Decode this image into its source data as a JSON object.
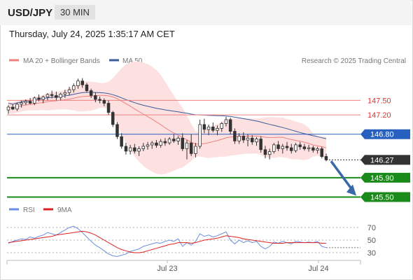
{
  "header": {
    "symbol": "USD/JPY",
    "timeframe": "30 MIN",
    "datetime": "Thursday, July 24, 2025 1:35:17 AM CET"
  },
  "colors": {
    "ma20": "#f08080",
    "ma50": "#3a5a9a",
    "band": "#fde0e0",
    "bull": "#ffffff",
    "bear": "#333333",
    "resistance": "#f08080",
    "pivot": "#2860c0",
    "support": "#1a8a1a",
    "arrow": "#3a68a8",
    "rsi": "#6b8fe0",
    "rsi_ma": "#dd2222"
  },
  "chart_data": [
    {
      "type": "candlestick",
      "legend": [
        "MA 20 + Bollinger Bands",
        "MA 50"
      ],
      "legend_placement": "top-left",
      "credit": "Research © 2025 Trading Central",
      "x_ticks": [
        "Jul 23",
        "Jul 24"
      ],
      "last_price": 146.27,
      "levels": [
        {
          "value": 147.5,
          "label": "147.50",
          "kind": "resistance"
        },
        {
          "value": 147.2,
          "label": "147.20",
          "kind": "resistance"
        },
        {
          "value": 146.8,
          "label": "146.80",
          "kind": "pivot"
        },
        {
          "value": 145.9,
          "label": "145.90",
          "kind": "support"
        },
        {
          "value": 145.5,
          "label": "145.50",
          "kind": "support"
        }
      ],
      "ylim": [
        145.45,
        148.2
      ],
      "candles": [
        [
          147.3,
          147.4,
          147.22,
          147.36
        ],
        [
          147.36,
          147.42,
          147.3,
          147.32
        ],
        [
          147.32,
          147.45,
          147.28,
          147.42
        ],
        [
          147.42,
          147.5,
          147.35,
          147.45
        ],
        [
          147.45,
          147.52,
          147.4,
          147.48
        ],
        [
          147.48,
          147.55,
          147.42,
          147.44
        ],
        [
          147.44,
          147.58,
          147.4,
          147.55
        ],
        [
          147.55,
          147.62,
          147.48,
          147.52
        ],
        [
          147.52,
          147.6,
          147.44,
          147.57
        ],
        [
          147.57,
          147.65,
          147.5,
          147.62
        ],
        [
          147.62,
          147.7,
          147.54,
          147.6
        ],
        [
          147.6,
          147.68,
          147.5,
          147.56
        ],
        [
          147.56,
          147.66,
          147.5,
          147.63
        ],
        [
          147.63,
          147.72,
          147.55,
          147.66
        ],
        [
          147.66,
          147.78,
          147.6,
          147.72
        ],
        [
          147.72,
          147.85,
          147.66,
          147.8
        ],
        [
          147.8,
          147.95,
          147.74,
          147.9
        ],
        [
          147.9,
          147.96,
          147.76,
          147.82
        ],
        [
          147.82,
          147.86,
          147.66,
          147.7
        ],
        [
          147.7,
          147.74,
          147.55,
          147.6
        ],
        [
          147.6,
          147.66,
          147.46,
          147.52
        ],
        [
          147.52,
          147.58,
          147.44,
          147.5
        ],
        [
          147.5,
          147.54,
          147.38,
          147.44
        ],
        [
          147.44,
          147.5,
          147.2,
          147.25
        ],
        [
          147.25,
          147.28,
          146.95,
          147.0
        ],
        [
          147.0,
          147.05,
          146.7,
          146.75
        ],
        [
          146.75,
          146.82,
          146.5,
          146.55
        ],
        [
          146.55,
          146.62,
          146.38,
          146.45
        ],
        [
          146.45,
          146.58,
          146.38,
          146.52
        ],
        [
          146.52,
          146.6,
          146.4,
          146.45
        ],
        [
          146.45,
          146.55,
          146.35,
          146.5
        ],
        [
          146.5,
          146.62,
          146.45,
          146.55
        ],
        [
          146.55,
          146.64,
          146.48,
          146.58
        ],
        [
          146.58,
          146.66,
          146.5,
          146.62
        ],
        [
          146.62,
          146.68,
          146.52,
          146.57
        ],
        [
          146.57,
          146.7,
          146.52,
          146.65
        ],
        [
          146.65,
          146.72,
          146.56,
          146.62
        ],
        [
          146.62,
          146.74,
          146.58,
          146.7
        ],
        [
          146.7,
          146.8,
          146.62,
          146.66
        ],
        [
          146.66,
          146.76,
          146.58,
          146.72
        ],
        [
          146.72,
          146.82,
          146.45,
          146.5
        ],
        [
          146.5,
          146.68,
          146.28,
          146.62
        ],
        [
          146.62,
          146.8,
          146.35,
          146.4
        ],
        [
          146.4,
          146.62,
          146.32,
          146.55
        ],
        [
          146.55,
          147.1,
          146.5,
          147.0
        ],
        [
          147.0,
          147.12,
          146.82,
          146.9
        ],
        [
          146.9,
          147.0,
          146.78,
          146.95
        ],
        [
          146.95,
          147.04,
          146.84,
          146.88
        ],
        [
          146.88,
          146.98,
          146.78,
          146.92
        ],
        [
          146.92,
          147.05,
          146.85,
          147.02
        ],
        [
          147.02,
          147.16,
          146.96,
          147.1
        ],
        [
          147.1,
          147.14,
          146.8,
          146.86
        ],
        [
          146.86,
          146.92,
          146.6,
          146.66
        ],
        [
          146.66,
          146.82,
          146.6,
          146.76
        ],
        [
          146.76,
          146.84,
          146.62,
          146.68
        ],
        [
          146.68,
          146.8,
          146.55,
          146.72
        ],
        [
          146.72,
          146.78,
          146.58,
          146.64
        ],
        [
          146.64,
          146.74,
          146.56,
          146.7
        ],
        [
          146.7,
          146.76,
          146.42,
          146.48
        ],
        [
          146.48,
          146.56,
          146.3,
          146.38
        ],
        [
          146.38,
          146.5,
          146.28,
          146.44
        ],
        [
          146.44,
          146.62,
          146.4,
          146.58
        ],
        [
          146.58,
          146.66,
          146.45,
          146.5
        ],
        [
          146.5,
          146.6,
          146.4,
          146.55
        ],
        [
          146.55,
          146.64,
          146.46,
          146.52
        ],
        [
          146.52,
          146.6,
          146.4,
          146.46
        ],
        [
          146.46,
          146.62,
          146.42,
          146.58
        ],
        [
          146.58,
          146.64,
          146.48,
          146.54
        ],
        [
          146.54,
          146.6,
          146.46,
          146.5
        ],
        [
          146.5,
          146.58,
          146.44,
          146.52
        ],
        [
          146.52,
          146.56,
          146.42,
          146.47
        ],
        [
          146.47,
          146.54,
          146.4,
          146.5
        ],
        [
          146.5,
          146.54,
          146.3,
          146.34
        ],
        [
          146.34,
          146.4,
          146.24,
          146.27
        ]
      ]
    },
    {
      "type": "line",
      "legend": [
        "RSI",
        "9MA"
      ],
      "y_ticks": [
        70,
        50,
        30
      ],
      "ylim": [
        20,
        80
      ],
      "series": [
        {
          "name": "RSI",
          "values": [
            45,
            48,
            50,
            52,
            51,
            55,
            53,
            56,
            58,
            62,
            60,
            58,
            62,
            66,
            70,
            72,
            68,
            62,
            55,
            48,
            42,
            38,
            33,
            28,
            25,
            24,
            26,
            28,
            32,
            34,
            36,
            40,
            42,
            44,
            46,
            45,
            48,
            50,
            48,
            52,
            40,
            46,
            42,
            48,
            60,
            56,
            58,
            55,
            57,
            60,
            63,
            50,
            44,
            50,
            46,
            49,
            46,
            48,
            40,
            36,
            40,
            47,
            45,
            48,
            46,
            44,
            48,
            47,
            46,
            47,
            46,
            48,
            40,
            38
          ]
        },
        {
          "name": "9MA",
          "values": [
            46,
            47,
            48,
            49,
            50,
            51,
            52,
            53,
            54,
            55,
            56,
            58,
            59,
            60,
            61,
            62,
            63,
            64,
            63,
            61,
            58,
            54,
            50,
            46,
            42,
            38,
            35,
            33,
            31,
            30,
            30,
            31,
            33,
            35,
            37,
            39,
            41,
            43,
            44,
            46,
            46,
            46,
            45,
            46,
            48,
            50,
            51,
            52,
            53,
            55,
            57,
            56,
            55,
            54,
            52,
            51,
            50,
            49,
            48,
            47,
            46,
            45,
            45,
            45,
            46,
            46,
            46,
            46,
            46,
            46,
            46,
            46,
            45,
            45
          ]
        }
      ]
    }
  ]
}
